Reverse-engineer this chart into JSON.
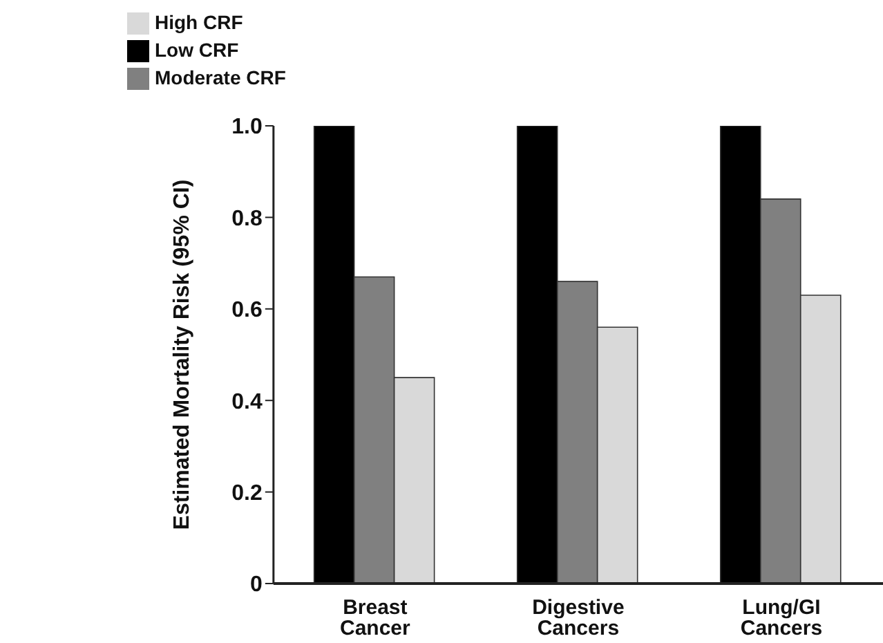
{
  "chart_data": {
    "type": "bar",
    "ylabel": "Estimated Mortality Risk (95% CI)",
    "categories": [
      "Breast Cancer",
      "Digestive Cancers",
      "Lung/GI Cancers"
    ],
    "series": [
      {
        "name": "Low CRF",
        "color": "#000000",
        "values": [
          1.0,
          1.0,
          1.0
        ]
      },
      {
        "name": "Moderate CRF",
        "color": "#808080",
        "values": [
          0.67,
          0.66,
          0.84
        ]
      },
      {
        "name": "High CRF",
        "color": "#d9d9d9",
        "values": [
          0.45,
          0.56,
          0.63
        ]
      }
    ],
    "ylim": [
      0,
      1
    ],
    "yticks": [
      0,
      0.2,
      0.4,
      0.6,
      0.8,
      {
        "value": 1,
        "label": "1.0"
      }
    ],
    "grid": false,
    "legend": "top left"
  }
}
